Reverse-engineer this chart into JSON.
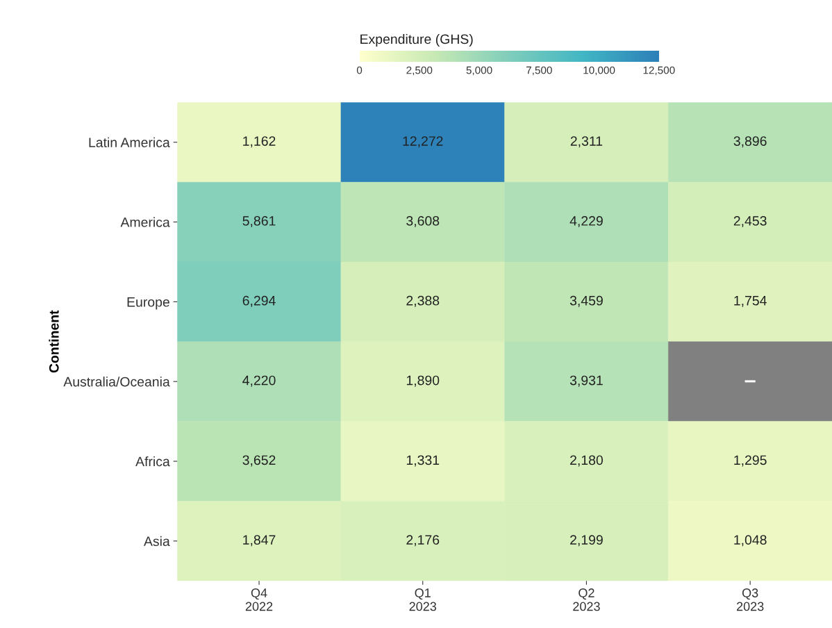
{
  "chart_data": {
    "type": "heatmap",
    "ylabel": "Continent",
    "clabel": "Expenditure (GHS)",
    "categories": [
      "Q4\n2022",
      "Q1\n2023",
      "Q2\n2023",
      "Q3\n2023"
    ],
    "y_categories": [
      "Latin America",
      "America",
      "Europe",
      "Australia/Oceania",
      "Africa",
      "Asia"
    ],
    "cells": [
      [
        1162,
        12272,
        2311,
        3896
      ],
      [
        5861,
        3608,
        4229,
        2453
      ],
      [
        6294,
        2388,
        3459,
        1754
      ],
      [
        4220,
        1890,
        3931,
        null
      ],
      [
        3652,
        1331,
        2180,
        1295
      ],
      [
        1847,
        2176,
        2199,
        1048
      ]
    ],
    "cell_labels": [
      [
        "1,162",
        "12,272",
        "2,311",
        "3,896"
      ],
      [
        "5,861",
        "3,608",
        "4,229",
        "2,453"
      ],
      [
        "6,294",
        "2,388",
        "3,459",
        "1,754"
      ],
      [
        "4,220",
        "1,890",
        "3,931",
        "–"
      ],
      [
        "3,652",
        "1,331",
        "2,180",
        "1,295"
      ],
      [
        "1,847",
        "2,176",
        "2,199",
        "1,048"
      ]
    ],
    "clim": [
      0,
      12500
    ],
    "cticks": [
      0,
      {
        "value": 2500,
        "label": "2,500"
      },
      {
        "value": 5000,
        "label": "5,000"
      },
      {
        "value": 7500,
        "label": "7,500"
      },
      {
        "value": 10000,
        "label": "10,000"
      },
      {
        "value": 12500,
        "label": "12,500"
      }
    ]
  }
}
